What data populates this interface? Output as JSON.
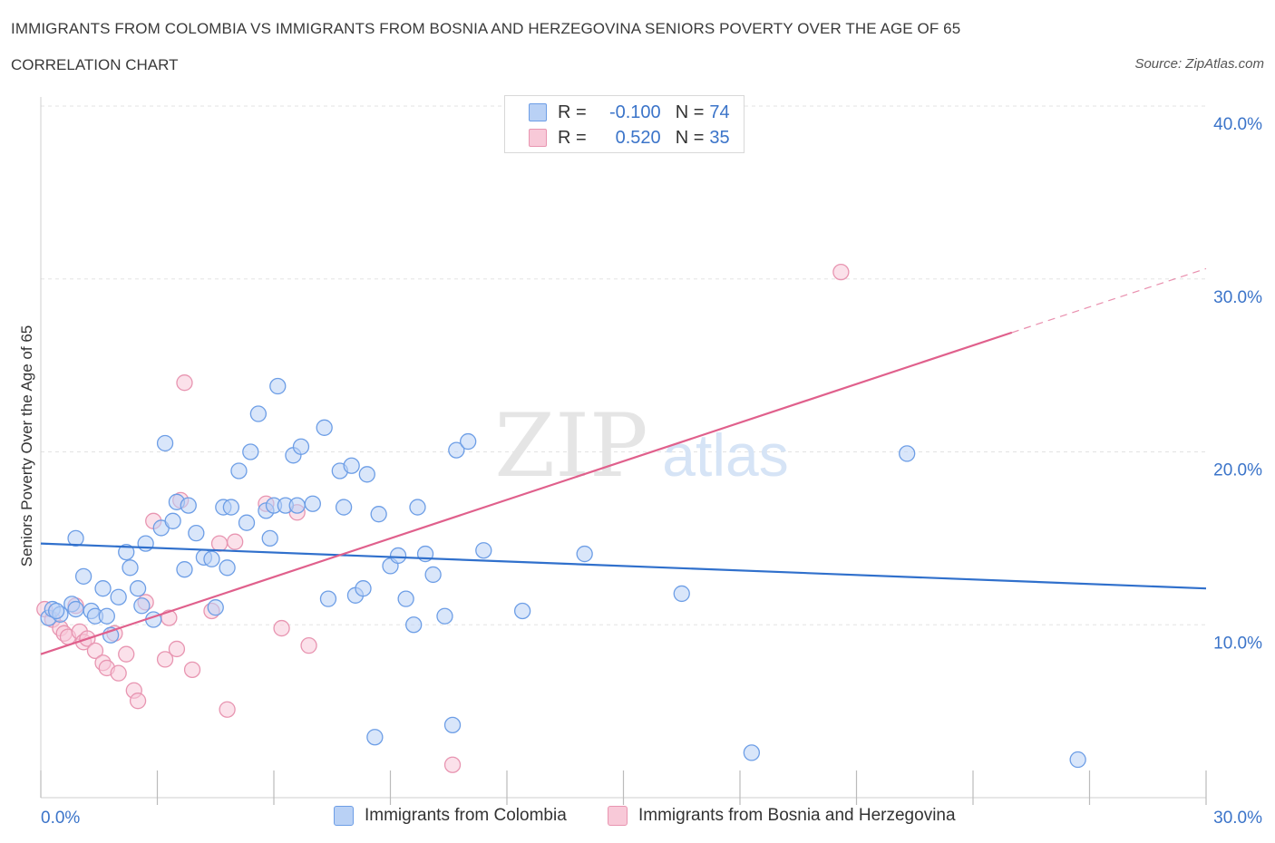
{
  "title": "IMMIGRANTS FROM COLOMBIA VS IMMIGRANTS FROM BOSNIA AND HERZEGOVINA SENIORS POVERTY OVER THE AGE OF 65",
  "subtitle": "CORRELATION CHART",
  "source": "Source: ZipAtlas.com",
  "watermark": {
    "zip": "ZIP",
    "atlas": "atlas"
  },
  "legend": {
    "rows": [
      {
        "r_label": "R =",
        "r_value": "-0.100",
        "n_label": "N =",
        "n_value": "74",
        "swatch_fill": "#b9d1f5",
        "swatch_stroke": "#6d9ee6"
      },
      {
        "r_label": "R =",
        "r_value": "0.520",
        "n_label": "N =",
        "n_value": "35",
        "swatch_fill": "#f8c9d8",
        "swatch_stroke": "#e895b1"
      }
    ]
  },
  "bottom_legend": {
    "series1": "Immigrants from Colombia",
    "series2": "Immigrants from Bosnia and Herzegovina"
  },
  "chart_data": {
    "type": "scatter",
    "title": "IMMIGRANTS FROM COLOMBIA VS IMMIGRANTS FROM BOSNIA AND HERZEGOVINA SENIORS POVERTY OVER THE AGE OF 65",
    "xlabel": "",
    "ylabel": "Seniors Poverty Over the Age of 65",
    "xlim": [
      0,
      30
    ],
    "ylim": [
      0,
      40
    ],
    "x_tick_labels": [
      "0.0%",
      "30.0%"
    ],
    "y_ticks": [
      10,
      20,
      30,
      40
    ],
    "y_tick_labels": [
      "10.0%",
      "20.0%",
      "30.0%",
      "40.0%"
    ],
    "grid": true,
    "legend_position": "top-center",
    "colors": {
      "colombia": "#6d9ee6",
      "colombia_fill": "#b9d1f5",
      "colombia_line": "#3070cc",
      "bosnia": "#e895b1",
      "bosnia_fill": "#f8c9d8",
      "bosnia_line": "#e0608c",
      "tick_text": "#3b74c9"
    },
    "series": [
      {
        "name": "Immigrants from Colombia",
        "trend": {
          "x": [
            0,
            30
          ],
          "y": [
            14.7,
            12.1
          ]
        },
        "points": [
          [
            0.2,
            10.4
          ],
          [
            0.3,
            10.9
          ],
          [
            0.5,
            10.6
          ],
          [
            0.4,
            10.8
          ],
          [
            0.8,
            11.2
          ],
          [
            0.9,
            10.9
          ],
          [
            0.9,
            15.0
          ],
          [
            1.1,
            12.8
          ],
          [
            1.3,
            10.8
          ],
          [
            1.4,
            10.5
          ],
          [
            1.6,
            12.1
          ],
          [
            1.7,
            10.5
          ],
          [
            1.8,
            9.4
          ],
          [
            2.0,
            11.6
          ],
          [
            2.2,
            14.2
          ],
          [
            2.3,
            13.3
          ],
          [
            2.5,
            12.1
          ],
          [
            2.6,
            11.1
          ],
          [
            2.7,
            14.7
          ],
          [
            2.9,
            10.3
          ],
          [
            3.1,
            15.6
          ],
          [
            3.2,
            20.5
          ],
          [
            3.4,
            16.0
          ],
          [
            3.5,
            17.1
          ],
          [
            3.7,
            13.2
          ],
          [
            3.8,
            16.9
          ],
          [
            4.0,
            15.3
          ],
          [
            4.2,
            13.9
          ],
          [
            4.4,
            13.8
          ],
          [
            4.5,
            11.0
          ],
          [
            4.7,
            16.8
          ],
          [
            4.8,
            13.3
          ],
          [
            4.9,
            16.8
          ],
          [
            5.1,
            18.9
          ],
          [
            5.3,
            15.9
          ],
          [
            5.4,
            20.0
          ],
          [
            5.6,
            22.2
          ],
          [
            5.8,
            16.6
          ],
          [
            5.9,
            15.0
          ],
          [
            6.0,
            16.9
          ],
          [
            6.1,
            23.8
          ],
          [
            6.3,
            16.9
          ],
          [
            6.5,
            19.8
          ],
          [
            6.6,
            16.9
          ],
          [
            6.7,
            20.3
          ],
          [
            7.0,
            17.0
          ],
          [
            7.3,
            21.4
          ],
          [
            7.4,
            11.5
          ],
          [
            7.7,
            18.9
          ],
          [
            7.8,
            16.8
          ],
          [
            8.0,
            19.2
          ],
          [
            8.1,
            11.7
          ],
          [
            8.3,
            12.1
          ],
          [
            8.4,
            18.7
          ],
          [
            8.6,
            3.5
          ],
          [
            8.7,
            16.4
          ],
          [
            9.0,
            13.4
          ],
          [
            9.2,
            14.0
          ],
          [
            9.4,
            11.5
          ],
          [
            9.6,
            10.0
          ],
          [
            9.7,
            16.8
          ],
          [
            9.9,
            14.1
          ],
          [
            10.1,
            12.9
          ],
          [
            10.4,
            10.5
          ],
          [
            10.6,
            4.2
          ],
          [
            10.7,
            20.1
          ],
          [
            11.0,
            20.6
          ],
          [
            11.4,
            14.3
          ],
          [
            12.4,
            10.8
          ],
          [
            14.0,
            14.1
          ],
          [
            16.5,
            11.8
          ],
          [
            18.3,
            2.6
          ],
          [
            22.3,
            19.9
          ],
          [
            26.7,
            2.2
          ]
        ]
      },
      {
        "name": "Immigrants from Bosnia and Herzegovina",
        "trend": {
          "x": [
            0,
            25
          ],
          "y": [
            8.3,
            26.9
          ]
        },
        "trend_dashed": {
          "x": [
            25,
            30
          ],
          "y": [
            26.9,
            30.6
          ]
        },
        "points": [
          [
            0.1,
            10.9
          ],
          [
            0.3,
            10.3
          ],
          [
            0.5,
            9.8
          ],
          [
            0.6,
            9.5
          ],
          [
            0.7,
            9.3
          ],
          [
            0.9,
            11.1
          ],
          [
            1.0,
            9.6
          ],
          [
            1.1,
            9.0
          ],
          [
            1.2,
            9.2
          ],
          [
            1.4,
            8.5
          ],
          [
            1.6,
            7.8
          ],
          [
            1.7,
            7.5
          ],
          [
            1.9,
            9.5
          ],
          [
            2.0,
            7.2
          ],
          [
            2.2,
            8.3
          ],
          [
            2.4,
            6.2
          ],
          [
            2.5,
            5.6
          ],
          [
            2.7,
            11.3
          ],
          [
            2.9,
            16.0
          ],
          [
            3.2,
            8.0
          ],
          [
            3.3,
            10.4
          ],
          [
            3.5,
            8.6
          ],
          [
            3.6,
            17.2
          ],
          [
            3.7,
            24.0
          ],
          [
            3.9,
            7.4
          ],
          [
            4.4,
            10.8
          ],
          [
            4.6,
            14.7
          ],
          [
            4.8,
            5.1
          ],
          [
            5.0,
            14.8
          ],
          [
            5.8,
            17.0
          ],
          [
            6.2,
            9.8
          ],
          [
            6.6,
            16.5
          ],
          [
            6.9,
            8.8
          ],
          [
            10.6,
            1.9
          ],
          [
            20.6,
            30.4
          ]
        ]
      }
    ]
  }
}
